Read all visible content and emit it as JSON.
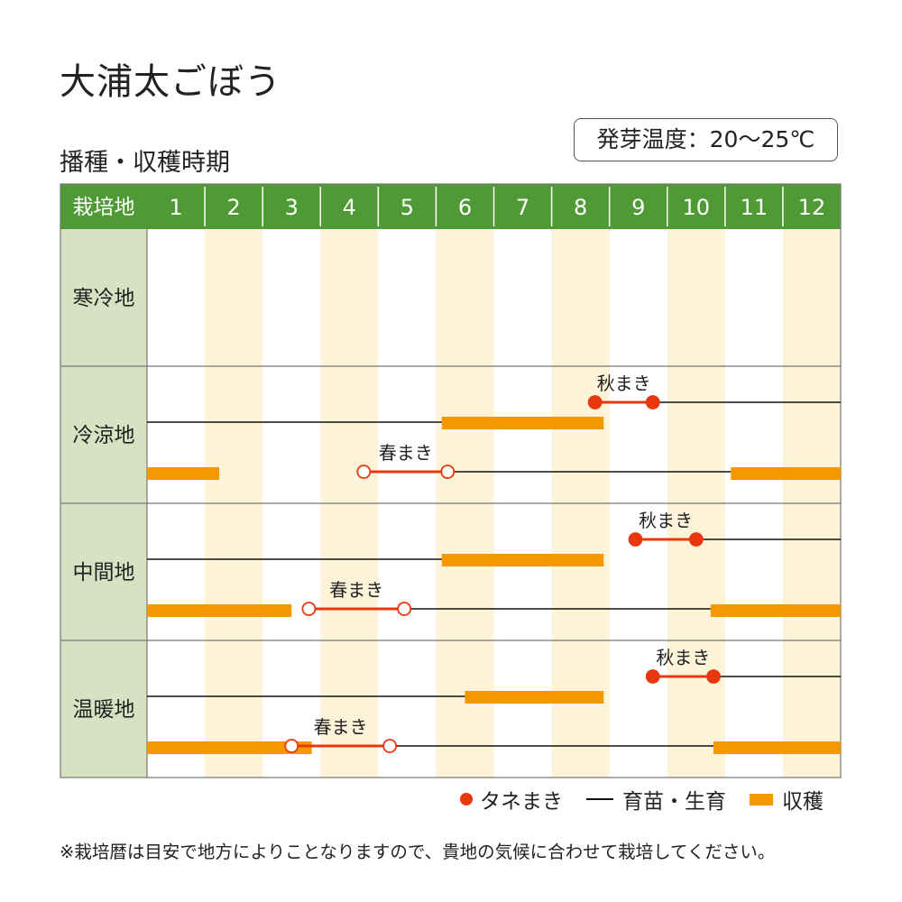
{
  "title": "大浦太ごぼう",
  "subtitle": "播種・収穫時期",
  "temperature_label": "発芽温度：20〜25℃",
  "note": "※栽培暦は目安で地方によりことなりますので、貴地の気候に合わせて栽培してください。",
  "legend": {
    "sowing": "タネまき",
    "growing": "育苗・生育",
    "harvest": "収穫"
  },
  "colors": {
    "header": "#4f9a35",
    "region_cell": "#d7e2c3",
    "stripe": "#fdf3d9",
    "sowing": "#e8380d",
    "harvest": "#f39800",
    "growing": "#111111"
  },
  "chart_data": {
    "type": "gantt",
    "header_label": "栽培地",
    "months": [
      "1",
      "2",
      "3",
      "4",
      "5",
      "6",
      "7",
      "8",
      "9",
      "10",
      "11",
      "12"
    ],
    "regions": [
      {
        "name": "寒冷地",
        "rows": []
      },
      {
        "name": "冷涼地",
        "rows": [
          {
            "label": "秋まき",
            "sow": [
              8.75,
              9.75
            ],
            "sow_marker": "filled",
            "grow": [
              [
                9.75,
                13.0
              ],
              [
                1.0,
                6.1
              ]
            ],
            "harvest": [
              [
                6.1,
                8.9
              ]
            ]
          },
          {
            "label": "春まき",
            "sow": [
              4.75,
              6.2
            ],
            "sow_marker": "open",
            "grow": [
              [
                6.2,
                11.1
              ]
            ],
            "harvest": [
              [
                1.0,
                2.25
              ],
              [
                11.1,
                13.0
              ]
            ]
          }
        ]
      },
      {
        "name": "中間地",
        "rows": [
          {
            "label": "秋まき",
            "sow": [
              9.45,
              10.5
            ],
            "sow_marker": "filled",
            "grow": [
              [
                10.5,
                13.0
              ],
              [
                1.0,
                6.1
              ]
            ],
            "harvest": [
              [
                6.1,
                8.9
              ]
            ]
          },
          {
            "label": "春まき",
            "sow": [
              3.8,
              5.45
            ],
            "sow_marker": "open",
            "grow": [
              [
                5.45,
                10.75
              ]
            ],
            "harvest": [
              [
                1.0,
                3.5
              ],
              [
                10.75,
                13.0
              ]
            ]
          }
        ]
      },
      {
        "name": "温暖地",
        "rows": [
          {
            "label": "秋まき",
            "sow": [
              9.75,
              10.8
            ],
            "sow_marker": "filled",
            "grow": [
              [
                10.8,
                13.0
              ],
              [
                1.0,
                6.5
              ]
            ],
            "harvest": [
              [
                6.5,
                8.9
              ]
            ]
          },
          {
            "label": "春まき",
            "sow": [
              3.5,
              5.2
            ],
            "sow_marker": "open",
            "grow": [
              [
                5.2,
                10.8
              ]
            ],
            "harvest": [
              [
                1.0,
                3.85
              ],
              [
                10.8,
                13.0
              ]
            ]
          }
        ]
      }
    ]
  }
}
